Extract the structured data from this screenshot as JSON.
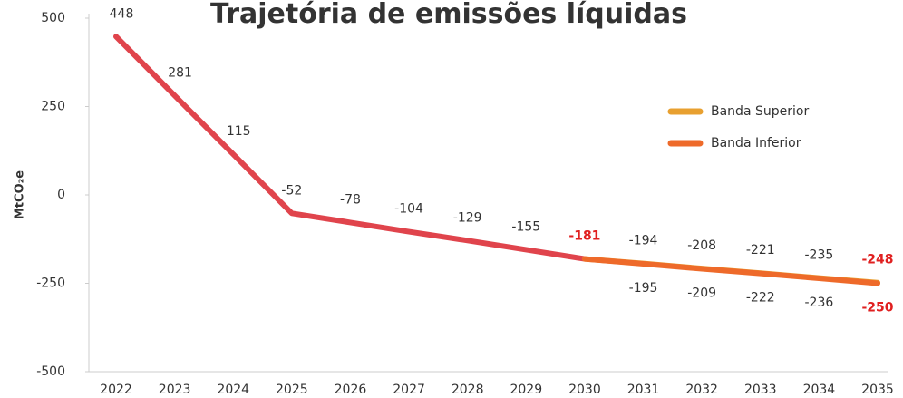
{
  "chart_data": {
    "type": "line",
    "title": "Trajetória de emissões líquidas",
    "ylabel": "MtCO₂e",
    "categories": [
      "2022",
      "2023",
      "2024",
      "2025",
      "2026",
      "2027",
      "2028",
      "2029",
      "2030",
      "2031",
      "2032",
      "2033",
      "2034",
      "2035"
    ],
    "series": [
      {
        "color": "#e0444c",
        "values": [
          448,
          281,
          115,
          -52,
          -78,
          -104,
          -129,
          -155,
          -181,
          null,
          null,
          null,
          null,
          null
        ]
      },
      {
        "name": "Banda Superior",
        "color": "#e8a030",
        "values": [
          null,
          null,
          null,
          null,
          null,
          null,
          null,
          null,
          -181,
          -194,
          -208,
          -221,
          -235,
          -248
        ]
      },
      {
        "name": "Banda Inferior",
        "color": "#ee6a2a",
        "values": [
          null,
          null,
          null,
          null,
          null,
          null,
          null,
          null,
          -181,
          -195,
          -209,
          -222,
          -236,
          -250
        ]
      }
    ],
    "ylim": [
      -500,
      500
    ],
    "yticks": [
      -500,
      -250,
      0,
      250,
      500
    ],
    "highlight_color": "#e02020"
  }
}
